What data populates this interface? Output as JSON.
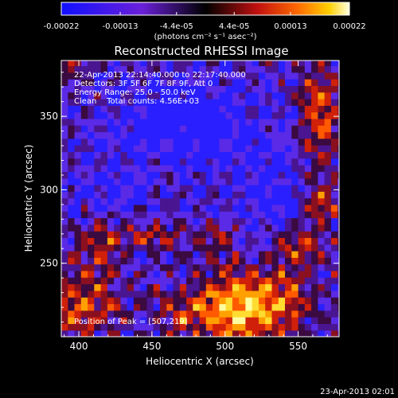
{
  "chart_data": {
    "type": "heatmap",
    "title": "Reconstructed RHESSI Image",
    "xlabel": "Heliocentric X (arcsec)",
    "ylabel": "Heliocentric Y (arcsec)",
    "xlim": [
      388,
      578
    ],
    "ylim": [
      200,
      388
    ],
    "xticks": [
      400,
      450,
      500,
      550
    ],
    "yticks": [
      250,
      300,
      350
    ],
    "colorbar": {
      "unit_label": "(photons cm⁻² s⁻¹ asec⁻²)",
      "tick_labels": [
        "-0.00022",
        "-0.00013",
        "-4.4e-05",
        "4.4e-05",
        "0.00013",
        "0.00022"
      ],
      "tick_values": [
        -0.00022,
        -0.00013,
        -4.4e-05,
        4.4e-05,
        0.00013,
        0.00022
      ],
      "range": [
        -0.00022,
        0.00022
      ]
    },
    "annotations": [
      "22-Apr-2013 22:14:40.000 to 22:17:40.000",
      "Detectors: 3F 5F 6F 7F 8F 9F, Att 0",
      "Energy Range: 25.0 - 50.0 keV",
      "Clean    Total counts: 4.56E+03"
    ],
    "peak_label": "Position of Peak = [507,219]",
    "peak": [
      507,
      219
    ]
  },
  "footer": {
    "date": "23-Apr-2013 02:01"
  },
  "colors": {
    "background": "#000000",
    "negative": "#1a10ff",
    "zero": "#000000",
    "positive_mid": "#d12a08",
    "positive_high": "#ffff90"
  }
}
